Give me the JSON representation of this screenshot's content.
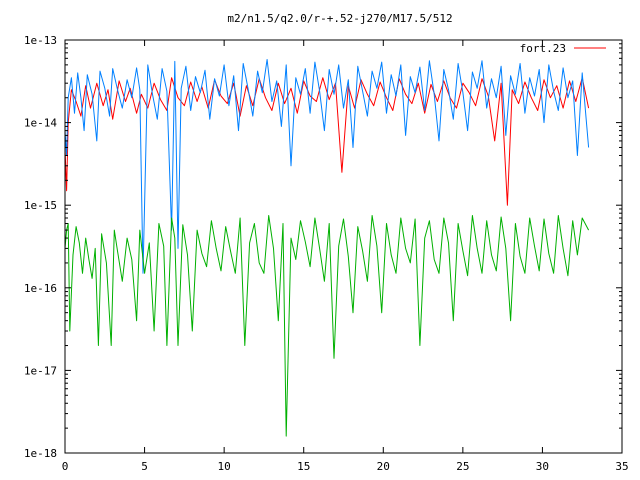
{
  "chart_data": {
    "type": "line",
    "title": "m2/n1.5/q2.0/r-+.52-j270/M17.5/512",
    "xlabel": "",
    "ylabel": "",
    "xlim": [
      0,
      35
    ],
    "ylim": [
      1e-18,
      1e-13
    ],
    "yscale": "log",
    "x_ticks": [
      0,
      5,
      10,
      15,
      20,
      25,
      30,
      35
    ],
    "x_tick_labels": [
      "0",
      "5",
      "10",
      "15",
      "20",
      "25",
      "30",
      "35"
    ],
    "y_ticks": [
      1e-18,
      1e-17,
      1e-16,
      1e-15,
      1e-14,
      1e-13
    ],
    "y_tick_labels": [
      "1e-18",
      "1e-17",
      "1e-16",
      "1e-15",
      "1e-14",
      "1e-13"
    ],
    "grid": false,
    "legend_position": "top-right",
    "series": [
      {
        "name": "fort.23",
        "color": "#ff0000",
        "x": [
          0.0,
          0.1,
          0.2,
          0.4,
          0.7,
          1.0,
          1.3,
          1.6,
          2.0,
          2.4,
          2.7,
          3.0,
          3.4,
          3.8,
          4.1,
          4.5,
          4.8,
          5.2,
          5.6,
          6.0,
          6.4,
          6.7,
          7.1,
          7.5,
          7.9,
          8.3,
          8.6,
          9.0,
          9.4,
          9.8,
          10.2,
          10.6,
          11.0,
          11.4,
          11.8,
          12.2,
          12.6,
          13.0,
          13.4,
          13.8,
          14.2,
          14.6,
          15.0,
          15.4,
          15.8,
          16.2,
          16.6,
          17.0,
          17.4,
          17.8,
          18.2,
          18.6,
          19.0,
          19.4,
          19.8,
          20.2,
          20.6,
          21.0,
          21.4,
          21.8,
          22.2,
          22.6,
          23.0,
          23.4,
          23.8,
          24.2,
          24.6,
          25.0,
          25.4,
          25.8,
          26.2,
          26.6,
          27.0,
          27.4,
          27.8,
          28.1,
          28.5,
          28.9,
          29.3,
          29.7,
          30.1,
          30.5,
          30.9,
          31.3,
          31.7,
          32.1,
          32.5,
          32.9
        ],
        "values": [
          5e-15,
          1.5e-15,
          1e-14,
          2.5e-14,
          1.8e-14,
          1.2e-14,
          2.8e-14,
          1.5e-14,
          3e-14,
          1.6e-14,
          2.5e-14,
          1.1e-14,
          3.2e-14,
          1.8e-14,
          2.6e-14,
          1.3e-14,
          2.2e-14,
          1.5e-14,
          3e-14,
          1.9e-14,
          1.4e-14,
          3.5e-14,
          2e-14,
          1.6e-14,
          3.1e-14,
          1.8e-14,
          2.7e-14,
          1.5e-14,
          3.3e-14,
          2.1e-14,
          1.7e-14,
          3e-14,
          1.2e-14,
          2.8e-14,
          1.6e-14,
          3.4e-14,
          2e-14,
          1.4e-14,
          3e-14,
          1.7e-14,
          2.6e-14,
          1.3e-14,
          3.2e-14,
          2.1e-14,
          1.8e-14,
          3.5e-14,
          1.9e-14,
          3e-14,
          2.5e-15,
          2.8e-14,
          1.5e-14,
          3.3e-14,
          2.2e-14,
          1.6e-14,
          3.1e-14,
          2e-14,
          1.4e-14,
          3.4e-14,
          2.2e-14,
          1.7e-14,
          3e-14,
          1.3e-14,
          2.9e-14,
          1.8e-14,
          3.2e-14,
          2e-14,
          1.5e-14,
          3e-14,
          2.3e-14,
          1.6e-14,
          3.4e-14,
          2.1e-14,
          6e-15,
          3e-14,
          1e-15,
          2.5e-14,
          1.7e-14,
          3.1e-14,
          2e-14,
          1.4e-14,
          3.3e-14,
          2e-14,
          2.8e-14,
          1.5e-14,
          3.2e-14,
          1.8e-14,
          3.5e-14,
          1.5e-14
        ]
      },
      {
        "color": "#0080ff",
        "x": [
          0.0,
          0.1,
          0.2,
          0.4,
          0.6,
          0.8,
          1.0,
          1.2,
          1.4,
          1.7,
          2.0,
          2.2,
          2.5,
          2.8,
          3.0,
          3.3,
          3.6,
          3.9,
          4.2,
          4.5,
          4.7,
          4.9,
          5.2,
          5.5,
          5.8,
          6.1,
          6.4,
          6.7,
          6.9,
          7.1,
          7.3,
          7.6,
          7.9,
          8.2,
          8.5,
          8.8,
          9.1,
          9.4,
          9.7,
          10.0,
          10.3,
          10.6,
          10.9,
          11.2,
          11.5,
          11.8,
          12.1,
          12.4,
          12.7,
          13.0,
          13.3,
          13.6,
          13.9,
          14.2,
          14.5,
          14.8,
          15.1,
          15.4,
          15.7,
          16.0,
          16.3,
          16.6,
          16.9,
          17.2,
          17.5,
          17.8,
          18.1,
          18.4,
          18.7,
          19.0,
          19.3,
          19.6,
          19.9,
          20.2,
          20.5,
          20.8,
          21.1,
          21.4,
          21.7,
          22.0,
          22.3,
          22.6,
          22.9,
          23.2,
          23.5,
          23.8,
          24.1,
          24.4,
          24.7,
          25.0,
          25.3,
          25.6,
          25.9,
          26.2,
          26.5,
          26.8,
          27.1,
          27.4,
          27.7,
          28.0,
          28.3,
          28.6,
          28.9,
          29.2,
          29.5,
          29.8,
          30.1,
          30.4,
          30.7,
          31.0,
          31.3,
          31.6,
          31.9,
          32.2,
          32.5,
          32.9
        ],
        "values": [
          8e-15,
          4e-15,
          2e-14,
          3.5e-14,
          1.3e-14,
          4e-14,
          2e-14,
          8e-15,
          3.8e-14,
          2.2e-14,
          6e-15,
          4.2e-14,
          2.6e-14,
          1.2e-14,
          4.5e-14,
          2.5e-14,
          1.5e-14,
          3.3e-14,
          2e-14,
          4.6e-14,
          2.5e-14,
          1.5e-16,
          5e-14,
          2.2e-14,
          1.1e-14,
          4.5e-14,
          2.4e-14,
          5e-16,
          5.5e-14,
          3e-16,
          2.6e-14,
          4.8e-14,
          1.4e-14,
          3.6e-14,
          2.3e-14,
          4.3e-14,
          1.1e-14,
          3.4e-14,
          2.1e-14,
          5e-14,
          1.6e-14,
          3.7e-14,
          8e-15,
          5.2e-14,
          2.6e-14,
          1.2e-14,
          4.2e-14,
          2.3e-14,
          5.8e-14,
          1.8e-14,
          3.2e-14,
          9e-15,
          5e-14,
          3e-15,
          3.5e-14,
          2.2e-14,
          4.5e-14,
          1.3e-14,
          5.4e-14,
          2.4e-14,
          8e-15,
          4.4e-14,
          2.2e-14,
          5e-14,
          1.5e-14,
          3.3e-14,
          5e-15,
          4.8e-14,
          2.4e-14,
          1.2e-14,
          4.2e-14,
          2.6e-14,
          5.4e-14,
          1.3e-14,
          3.8e-14,
          2.1e-14,
          5e-14,
          7e-15,
          3.6e-14,
          2.3e-14,
          4.7e-14,
          1.4e-14,
          5.6e-14,
          2.2e-14,
          6e-15,
          4.4e-14,
          2.5e-14,
          1.1e-14,
          5.2e-14,
          2.3e-14,
          8e-15,
          4.1e-14,
          2.6e-14,
          5.6e-14,
          1.5e-14,
          3.4e-14,
          2e-14,
          4.8e-14,
          7e-15,
          3.7e-14,
          2.2e-14,
          5.2e-14,
          1.3e-14,
          3.5e-14,
          2.1e-14,
          4.4e-14,
          1e-14,
          5e-14,
          2.4e-14,
          1.4e-14,
          4.6e-14,
          2e-14,
          3.2e-14,
          4e-15,
          4e-14,
          5e-15
        ]
      },
      {
        "color": "#00b000",
        "x": [
          0.0,
          0.1,
          0.2,
          0.3,
          0.5,
          0.7,
          0.9,
          1.1,
          1.3,
          1.5,
          1.7,
          1.9,
          2.1,
          2.3,
          2.6,
          2.9,
          3.1,
          3.3,
          3.6,
          3.9,
          4.2,
          4.5,
          4.7,
          5.0,
          5.3,
          5.6,
          5.9,
          6.2,
          6.4,
          6.7,
          6.9,
          7.1,
          7.4,
          7.7,
          8.0,
          8.3,
          8.6,
          8.9,
          9.2,
          9.5,
          9.8,
          10.1,
          10.4,
          10.7,
          11.0,
          11.3,
          11.6,
          11.9,
          12.2,
          12.5,
          12.8,
          13.1,
          13.4,
          13.7,
          13.9,
          14.2,
          14.5,
          14.8,
          15.1,
          15.4,
          15.7,
          16.0,
          16.3,
          16.6,
          16.9,
          17.2,
          17.5,
          17.8,
          18.1,
          18.4,
          18.7,
          19.0,
          19.3,
          19.6,
          19.9,
          20.2,
          20.5,
          20.8,
          21.1,
          21.4,
          21.7,
          22.0,
          22.3,
          22.6,
          22.9,
          23.2,
          23.5,
          23.8,
          24.1,
          24.4,
          24.7,
          25.0,
          25.3,
          25.6,
          25.9,
          26.2,
          26.5,
          26.8,
          27.1,
          27.4,
          27.7,
          28.0,
          28.3,
          28.6,
          28.9,
          29.2,
          29.5,
          29.8,
          30.1,
          30.4,
          30.7,
          31.0,
          31.3,
          31.6,
          31.9,
          32.2,
          32.5,
          32.9
        ],
        "values": [
          3e-16,
          5e-16,
          6e-16,
          3e-17,
          2.5e-16,
          5.5e-16,
          3.5e-16,
          1.5e-16,
          4e-16,
          2.2e-16,
          1.3e-16,
          3e-16,
          2e-17,
          4.5e-16,
          2e-16,
          2e-17,
          5e-16,
          2.8e-16,
          1.2e-16,
          4e-16,
          2.2e-16,
          4e-17,
          5e-16,
          1.5e-16,
          3.5e-16,
          3e-17,
          6e-16,
          3.2e-16,
          2e-17,
          7e-16,
          4e-16,
          2e-17,
          5.8e-16,
          2.5e-16,
          3e-17,
          5e-16,
          2.6e-16,
          1.8e-16,
          6.5e-16,
          3e-16,
          1.6e-16,
          5.5e-16,
          2.8e-16,
          1.5e-16,
          7e-16,
          2e-17,
          3.5e-16,
          6e-16,
          2e-16,
          1.5e-16,
          7.5e-16,
          3e-16,
          4e-17,
          6e-16,
          1.6e-18,
          4e-16,
          2.2e-16,
          6.5e-16,
          3.6e-16,
          1.8e-16,
          7e-16,
          3e-16,
          1.2e-16,
          6e-16,
          1.4e-17,
          3.2e-16,
          6.8e-16,
          2.4e-16,
          5e-17,
          5.5e-16,
          2.8e-16,
          1.2e-16,
          7.5e-16,
          3.2e-16,
          5e-17,
          6e-16,
          2.5e-16,
          1.5e-16,
          7e-16,
          3e-16,
          2e-16,
          6.8e-16,
          2e-17,
          4e-16,
          6.5e-16,
          2.2e-16,
          1.5e-16,
          7e-16,
          3.5e-16,
          4e-17,
          6e-16,
          2.8e-16,
          1.4e-16,
          7.5e-16,
          3e-16,
          1.5e-16,
          6.5e-16,
          2.5e-16,
          1.6e-16,
          7.2e-16,
          3e-16,
          4e-17,
          6e-16,
          2.4e-16,
          1.5e-16,
          7e-16,
          3.2e-16,
          1.6e-16,
          6.8e-16,
          2.6e-16,
          1.5e-16,
          7.5e-16,
          3e-16,
          1.4e-16,
          6.5e-16,
          2.5e-16,
          7e-16,
          5e-16
        ]
      }
    ]
  }
}
